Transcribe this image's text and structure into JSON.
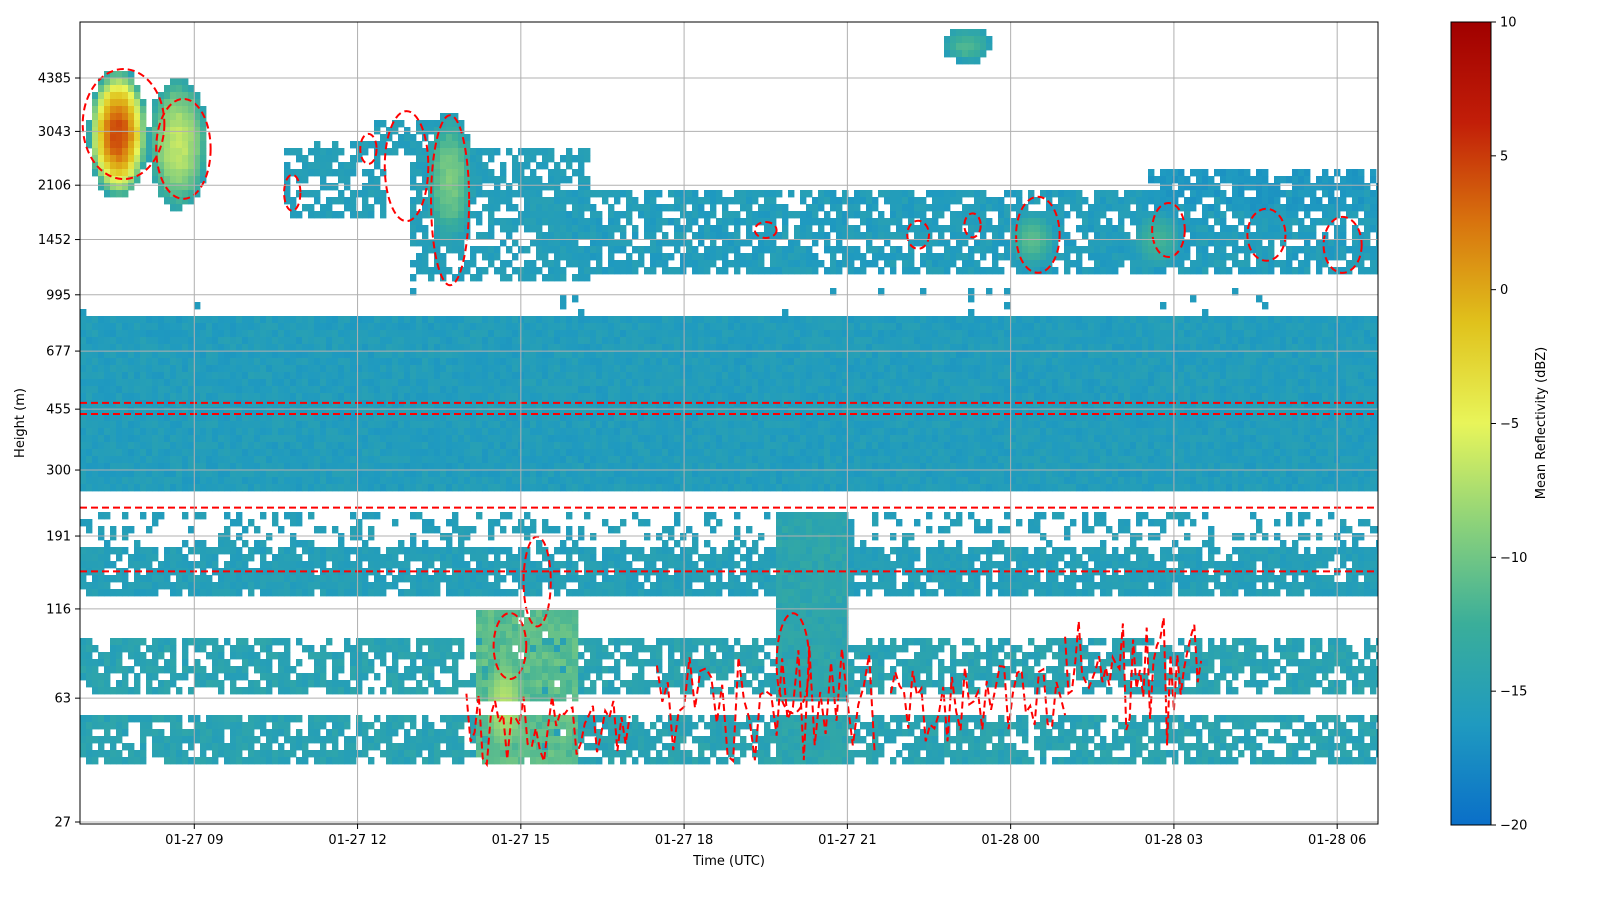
{
  "chart_data": {
    "type": "heatmap",
    "xlabel": "Time (UTC)",
    "ylabel": "Height (m)",
    "x_ticks": [
      "01-27 09",
      "01-27 12",
      "01-27 15",
      "01-27 18",
      "01-27 21",
      "01-28 00",
      "01-28 03",
      "01-28 06"
    ],
    "x_range_hours": [
      6.9,
      30.75
    ],
    "y_ticks": [
      "27",
      "63",
      "116",
      "191",
      "300",
      "455",
      "677",
      "995",
      "1452",
      "2106",
      "3043",
      "4385"
    ],
    "y_scale": "log",
    "grid": true,
    "colorbar": {
      "label": "Mean Reflectivity (dBZ)",
      "range": [
        -20,
        10
      ],
      "ticks": [
        "10",
        "5",
        "0",
        "−5",
        "−10",
        "−15",
        "−20"
      ],
      "colors": [
        "#0a6fc8",
        "#1f9ac0",
        "#3aae9a",
        "#8cd27a",
        "#e8f55a",
        "#e0c21c",
        "#d8740e",
        "#c21e08",
        "#a00000"
      ]
    },
    "contour_color": "#ff0000",
    "contour_style": "dashed",
    "echo_layers": [
      {
        "name": "near-surface clutter",
        "height_m": [
          38,
          56
        ],
        "time_h": [
          6.9,
          30.75
        ],
        "dBZ": -15
      },
      {
        "name": "low clutter band",
        "height_m": [
          63,
          95
        ],
        "time_h": [
          6.9,
          30.75
        ],
        "dBZ": -15
      },
      {
        "name": "clutter band",
        "height_m": [
          120,
          170
        ],
        "time_h": [
          6.9,
          30.75
        ],
        "dBZ": -16
      },
      {
        "name": "boundary layer",
        "height_m": [
          270,
          860
        ],
        "time_h": [
          6.9,
          30.75
        ],
        "dBZ": -16
      },
      {
        "name": "stratiform layer",
        "height_m": [
          1100,
          2100
        ],
        "time_h": [
          11,
          30.75
        ],
        "dBZ": -16
      },
      {
        "name": "convective cell",
        "height_m": [
          2300,
          4400
        ],
        "time_h": [
          6.9,
          9.2
        ],
        "dBZ": 2
      },
      {
        "name": "cell",
        "height_m": [
          1700,
          3000
        ],
        "time_h": [
          13.5,
          14.6
        ],
        "dBZ": -11
      },
      {
        "name": "cell",
        "height_m": [
          45,
          110
        ],
        "time_h": [
          14.3,
          15.8
        ],
        "dBZ": -8
      },
      {
        "name": "cell",
        "height_m": [
          40,
          230
        ],
        "time_h": [
          19.8,
          21.0
        ],
        "dBZ": -14
      },
      {
        "name": "cell",
        "height_m": [
          5200,
          6200
        ],
        "time_h": [
          22.8,
          23.6
        ],
        "dBZ": -12
      }
    ]
  }
}
